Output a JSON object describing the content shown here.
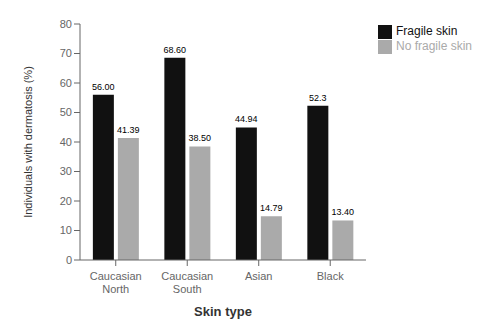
{
  "chart_data": {
    "type": "bar",
    "xlabel": "Skin type",
    "ylabel": "Individuals with dermatosis (%)",
    "categories": [
      "Caucasian\nNorth",
      "Caucasian\nSouth",
      "Asian",
      "Black"
    ],
    "series": [
      {
        "name": "Fragile skin",
        "color": "#111111",
        "values": [
          56.0,
          68.6,
          44.94,
          52.3
        ],
        "value_labels": [
          "56.00",
          "68.60",
          "44.94",
          "52.3"
        ]
      },
      {
        "name": "No fragile skin",
        "color": "#aaaaaa",
        "values": [
          41.39,
          38.5,
          14.79,
          13.4
        ],
        "value_labels": [
          "41.39",
          "38.50",
          "14.79",
          "13.40"
        ]
      }
    ],
    "ylim": [
      0,
      80
    ],
    "yticks": [
      0,
      10,
      20,
      30,
      40,
      50,
      60,
      70,
      80
    ],
    "grid": false,
    "legend": "right",
    "data_labels": true
  }
}
